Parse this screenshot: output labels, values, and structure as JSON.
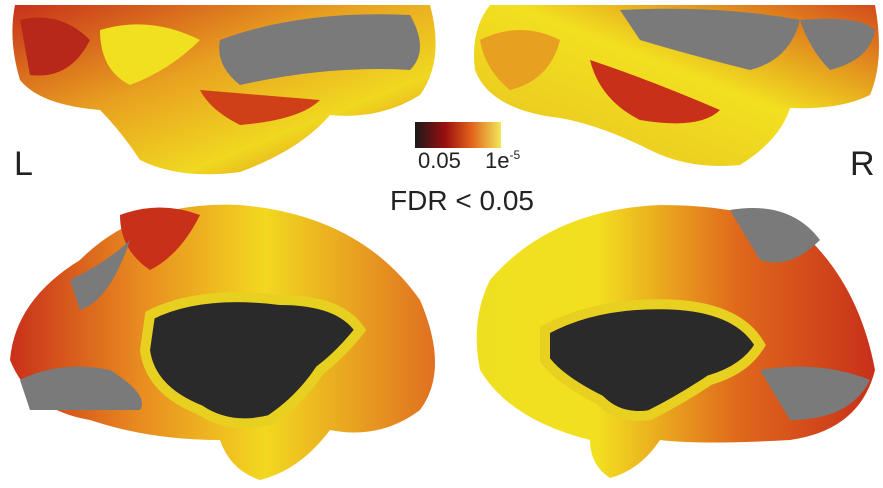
{
  "labels": {
    "left": "L",
    "right": "R"
  },
  "colorbar": {
    "min_label": "0.05",
    "max_label": {
      "base": "1e",
      "exponent": "-5"
    },
    "caption": "FDR < 0.05"
  }
}
